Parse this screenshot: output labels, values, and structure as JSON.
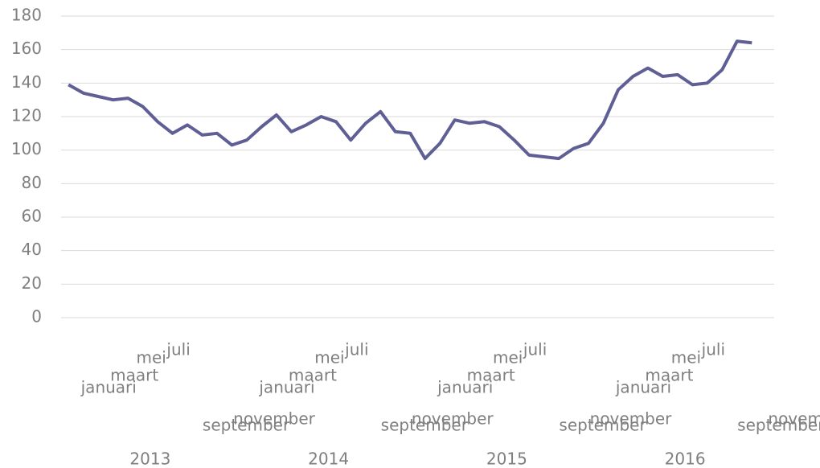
{
  "chart_data": {
    "type": "line",
    "categories": [
      "januari",
      null,
      "maart",
      null,
      "mei",
      null,
      "juli",
      null,
      "september",
      null,
      "november",
      null,
      "januari",
      null,
      "maart",
      null,
      "mei",
      null,
      "juli",
      null,
      "september",
      null,
      "november",
      null,
      "januari",
      null,
      "maart",
      null,
      "mei",
      null,
      "juli",
      null,
      "september",
      null,
      "november",
      null,
      "januari",
      null,
      "maart",
      null,
      "mei",
      null,
      "juli",
      null,
      "september",
      null,
      "november",
      null
    ],
    "years": [
      "2013",
      "2014",
      "2015",
      "2016"
    ],
    "series": [
      {
        "color": "#5f5f96",
        "values": [
          139,
          134,
          132,
          130,
          131,
          126,
          117,
          110,
          115,
          109,
          110,
          103,
          106,
          114,
          121,
          111,
          115,
          120,
          117,
          106,
          116,
          123,
          111,
          110,
          95,
          104,
          118,
          116,
          117,
          114,
          106,
          97,
          96,
          95,
          101,
          104,
          116,
          136,
          144,
          149,
          144,
          145,
          139,
          140,
          148,
          165,
          164,
          null
        ]
      }
    ],
    "ylim": [
      0,
      180
    ],
    "yticks": [
      0,
      20,
      40,
      60,
      80,
      100,
      120,
      140,
      160,
      180
    ],
    "grid": true
  }
}
